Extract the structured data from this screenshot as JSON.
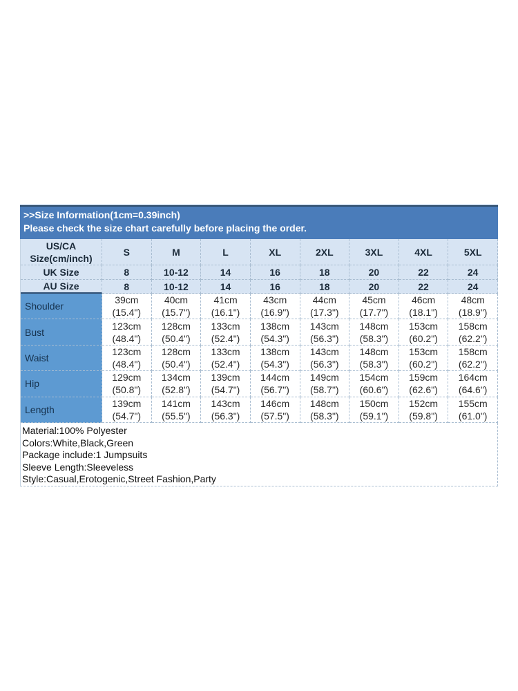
{
  "header": {
    "line1": ">>Size Information(1cm=0.39inch)",
    "line2": "Please check the size chart carefully before placing the order."
  },
  "size_table": {
    "corner": [
      "US/CA",
      "Size(cm/inch)"
    ],
    "sizes": [
      "S",
      "M",
      "L",
      "XL",
      "2XL",
      "3XL",
      "4XL",
      "5XL"
    ],
    "uk": {
      "label": "UK Size",
      "values": [
        "8",
        "10-12",
        "14",
        "16",
        "18",
        "20",
        "22",
        "24"
      ]
    },
    "au": {
      "label": "AU Size",
      "values": [
        "8",
        "10-12",
        "14",
        "16",
        "18",
        "20",
        "22",
        "24"
      ]
    },
    "measurements": [
      {
        "label": "Shoulder",
        "cm": [
          "39cm",
          "40cm",
          "41cm",
          "43cm",
          "44cm",
          "45cm",
          "46cm",
          "48cm"
        ],
        "inch": [
          "(15.4\")",
          "(15.7\")",
          "(16.1\")",
          "(16.9\")",
          "(17.3\")",
          "(17.7\")",
          "(18.1\")",
          "(18.9\")"
        ]
      },
      {
        "label": "Bust",
        "cm": [
          "123cm",
          "128cm",
          "133cm",
          "138cm",
          "143cm",
          "148cm",
          "153cm",
          "158cm"
        ],
        "inch": [
          "(48.4\")",
          "(50.4\")",
          "(52.4\")",
          "(54.3\")",
          "(56.3\")",
          "(58.3\")",
          "(60.2\")",
          "(62.2\")"
        ]
      },
      {
        "label": "Waist",
        "cm": [
          "123cm",
          "128cm",
          "133cm",
          "138cm",
          "143cm",
          "148cm",
          "153cm",
          "158cm"
        ],
        "inch": [
          "(48.4\")",
          "(50.4\")",
          "(52.4\")",
          "(54.3\")",
          "(56.3\")",
          "(58.3\")",
          "(60.2\")",
          "(62.2\")"
        ]
      },
      {
        "label": "Hip",
        "cm": [
          "129cm",
          "134cm",
          "139cm",
          "144cm",
          "149cm",
          "154cm",
          "159cm",
          "164cm"
        ],
        "inch": [
          "(50.8\")",
          "(52.8\")",
          "(54.7\")",
          "(56.7\")",
          "(58.7\")",
          "(60.6\")",
          "(62.6\")",
          "(64.6\")"
        ]
      },
      {
        "label": "Length",
        "cm": [
          "139cm",
          "141cm",
          "143cm",
          "146cm",
          "148cm",
          "150cm",
          "152cm",
          "155cm"
        ],
        "inch": [
          "(54.7\")",
          "(55.5\")",
          "(56.3\")",
          "(57.5\")",
          "(58.3\")",
          "(59.1\")",
          "(59.8\")",
          "(61.0\")"
        ]
      }
    ]
  },
  "details": [
    "Material:100% Polyester",
    "Colors:White,Black,Green",
    "Package include:1 Jumpsuits",
    "Sleeve Length:Sleeveless",
    "Style:Casual,Erotogenic,Street Fashion,Party"
  ],
  "colors": {
    "band_blue": "#4a7cba",
    "light_blue": "#d7e4f3",
    "medium_blue": "#5d9ad2",
    "grid_line": "#a9bdd1",
    "dark_border": "#2c4a68"
  }
}
